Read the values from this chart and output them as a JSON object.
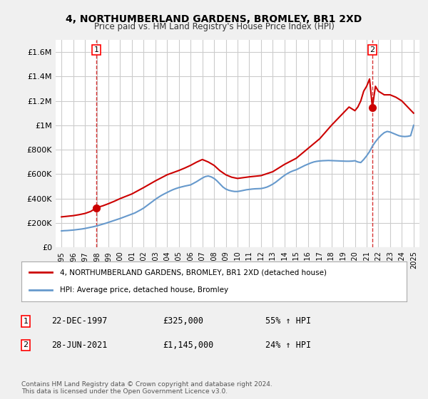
{
  "title": "4, NORTHUMBERLAND GARDENS, BROMLEY, BR1 2XD",
  "subtitle": "Price paid vs. HM Land Registry's House Price Index (HPI)",
  "ylabel": "",
  "xlabel": "",
  "ylim": [
    0,
    1700000
  ],
  "xlim": [
    1994.5,
    2025.5
  ],
  "yticks": [
    0,
    200000,
    400000,
    600000,
    800000,
    1000000,
    1200000,
    1400000,
    1600000
  ],
  "ytick_labels": [
    "£0",
    "£200K",
    "£400K",
    "£600K",
    "£800K",
    "£1M",
    "£1.2M",
    "£1.4M",
    "£1.6M"
  ],
  "xticks": [
    1995,
    1996,
    1997,
    1998,
    1999,
    2000,
    2001,
    2002,
    2003,
    2004,
    2005,
    2006,
    2007,
    2008,
    2009,
    2010,
    2011,
    2012,
    2013,
    2014,
    2015,
    2016,
    2017,
    2018,
    2019,
    2020,
    2021,
    2022,
    2023,
    2024,
    2025
  ],
  "background_color": "#f0f0f0",
  "plot_background": "#ffffff",
  "grid_color": "#cccccc",
  "red_line_color": "#cc0000",
  "blue_line_color": "#6699cc",
  "sale1_x": 1997.97,
  "sale1_y": 325000,
  "sale2_x": 2021.49,
  "sale2_y": 1145000,
  "legend_label_red": "4, NORTHUMBERLAND GARDENS, BROMLEY, BR1 2XD (detached house)",
  "legend_label_blue": "HPI: Average price, detached house, Bromley",
  "annotation1_label": "1",
  "annotation2_label": "2",
  "info1": "22-DEC-1997",
  "info1_price": "£325,000",
  "info1_hpi": "55% ↑ HPI",
  "info2": "28-JUN-2021",
  "info2_price": "£1,145,000",
  "info2_hpi": "24% ↑ HPI",
  "footer": "Contains HM Land Registry data © Crown copyright and database right 2024.\nThis data is licensed under the Open Government Licence v3.0.",
  "hpi_x": [
    1995,
    1995.25,
    1995.5,
    1995.75,
    1996,
    1996.25,
    1996.5,
    1996.75,
    1997,
    1997.25,
    1997.5,
    1997.75,
    1998,
    1998.25,
    1998.5,
    1998.75,
    1999,
    1999.25,
    1999.5,
    1999.75,
    2000,
    2000.25,
    2000.5,
    2000.75,
    2001,
    2001.25,
    2001.5,
    2001.75,
    2002,
    2002.25,
    2002.5,
    2002.75,
    2003,
    2003.25,
    2003.5,
    2003.75,
    2004,
    2004.25,
    2004.5,
    2004.75,
    2005,
    2005.25,
    2005.5,
    2005.75,
    2006,
    2006.25,
    2006.5,
    2006.75,
    2007,
    2007.25,
    2007.5,
    2007.75,
    2008,
    2008.25,
    2008.5,
    2008.75,
    2009,
    2009.25,
    2009.5,
    2009.75,
    2010,
    2010.25,
    2010.5,
    2010.75,
    2011,
    2011.25,
    2011.5,
    2011.75,
    2012,
    2012.25,
    2012.5,
    2012.75,
    2013,
    2013.25,
    2013.5,
    2013.75,
    2014,
    2014.25,
    2014.5,
    2014.75,
    2015,
    2015.25,
    2015.5,
    2015.75,
    2016,
    2016.25,
    2016.5,
    2016.75,
    2017,
    2017.25,
    2017.5,
    2017.75,
    2018,
    2018.25,
    2018.5,
    2018.75,
    2019,
    2019.25,
    2019.5,
    2019.75,
    2020,
    2020.25,
    2020.5,
    2020.75,
    2021,
    2021.25,
    2021.5,
    2021.75,
    2022,
    2022.25,
    2022.5,
    2022.75,
    2023,
    2023.25,
    2023.5,
    2023.75,
    2024,
    2024.25,
    2024.5,
    2024.75,
    2025
  ],
  "hpi_y": [
    135000,
    137000,
    138000,
    140000,
    142000,
    145000,
    148000,
    151000,
    155000,
    160000,
    165000,
    170000,
    176000,
    183000,
    190000,
    197000,
    205000,
    213000,
    221000,
    229000,
    237000,
    246000,
    255000,
    264000,
    273000,
    282000,
    295000,
    308000,
    322000,
    340000,
    358000,
    376000,
    394000,
    410000,
    425000,
    438000,
    450000,
    462000,
    473000,
    482000,
    490000,
    496000,
    502000,
    507000,
    512000,
    525000,
    538000,
    553000,
    568000,
    580000,
    585000,
    578000,
    565000,
    545000,
    520000,
    495000,
    478000,
    468000,
    462000,
    458000,
    458000,
    462000,
    467000,
    472000,
    475000,
    478000,
    480000,
    481000,
    482000,
    487000,
    494000,
    505000,
    518000,
    534000,
    553000,
    572000,
    590000,
    605000,
    618000,
    628000,
    636000,
    648000,
    660000,
    672000,
    682000,
    692000,
    700000,
    705000,
    708000,
    710000,
    711000,
    712000,
    711000,
    710000,
    709000,
    708000,
    707000,
    706000,
    706000,
    707000,
    710000,
    700000,
    695000,
    720000,
    750000,
    785000,
    830000,
    865000,
    895000,
    920000,
    940000,
    950000,
    945000,
    935000,
    925000,
    915000,
    910000,
    908000,
    910000,
    915000,
    1000000
  ],
  "red_x": [
    1995,
    1995.5,
    1996,
    1996.5,
    1997,
    1997.5,
    1997.97,
    1998.5,
    1999,
    1999.5,
    2000,
    2001,
    2002,
    2003,
    2004,
    2005,
    2005.5,
    2006,
    2006.5,
    2007,
    2007.5,
    2008,
    2008.5,
    2009,
    2009.5,
    2010,
    2011,
    2012,
    2013,
    2014,
    2015,
    2016,
    2017,
    2018,
    2018.5,
    2019,
    2019.5,
    2020,
    2020.25,
    2020.5,
    2020.75,
    2021,
    2021.25,
    2021.49,
    2021.75,
    2022,
    2022.5,
    2023,
    2023.5,
    2024,
    2024.5,
    2025
  ],
  "red_y": [
    250000,
    255000,
    260000,
    268000,
    278000,
    295000,
    325000,
    340000,
    358000,
    378000,
    400000,
    438000,
    490000,
    545000,
    595000,
    630000,
    650000,
    672000,
    698000,
    720000,
    700000,
    672000,
    628000,
    595000,
    575000,
    565000,
    578000,
    588000,
    620000,
    680000,
    730000,
    810000,
    890000,
    1000000,
    1050000,
    1100000,
    1150000,
    1120000,
    1150000,
    1200000,
    1280000,
    1320000,
    1380000,
    1145000,
    1320000,
    1280000,
    1250000,
    1250000,
    1230000,
    1200000,
    1150000,
    1100000
  ]
}
